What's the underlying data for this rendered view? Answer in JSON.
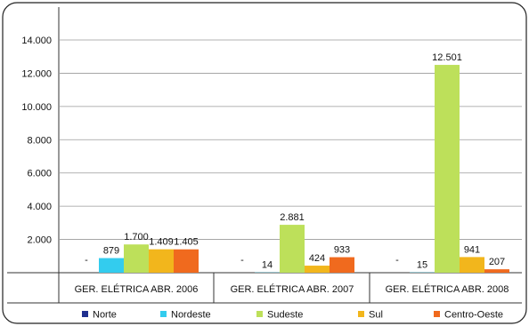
{
  "chart_data": {
    "type": "bar",
    "categories": [
      "GER. ELÉTRICA ABR. 2006",
      "GER. ELÉTRICA ABR. 2007",
      "GER. ELÉTRICA ABR. 2008"
    ],
    "series": [
      {
        "name": "Norte",
        "color": "#1f2f8f",
        "values": [
          0,
          0,
          0
        ],
        "labels": [
          "-",
          "-",
          "-"
        ]
      },
      {
        "name": "Nordeste",
        "color": "#33ccee",
        "values": [
          879,
          14,
          15
        ],
        "labels": [
          "879",
          "14",
          "15"
        ]
      },
      {
        "name": "Sudeste",
        "color": "#bde05a",
        "values": [
          1700,
          2881,
          12501
        ],
        "labels": [
          "1.700",
          "2.881",
          "12.501"
        ]
      },
      {
        "name": "Sul",
        "color": "#f2b61c",
        "values": [
          1409,
          424,
          941
        ],
        "labels": [
          "1.409",
          "424",
          "941"
        ]
      },
      {
        "name": "Centro-Oeste",
        "color": "#f06a1e",
        "values": [
          1405,
          933,
          207
        ],
        "labels": [
          "1.405",
          "933",
          "207"
        ]
      }
    ],
    "yticks": [
      {
        "value": 2000,
        "label": "2.000"
      },
      {
        "value": 4000,
        "label": "4.000"
      },
      {
        "value": 6000,
        "label": "6.000"
      },
      {
        "value": 8000,
        "label": "8.000"
      },
      {
        "value": 10000,
        "label": "10.000"
      },
      {
        "value": 12000,
        "label": "12.000"
      },
      {
        "value": 14000,
        "label": "14.000"
      }
    ],
    "ylim": [
      0,
      14000
    ],
    "grid": true,
    "legend_position": "bottom"
  }
}
